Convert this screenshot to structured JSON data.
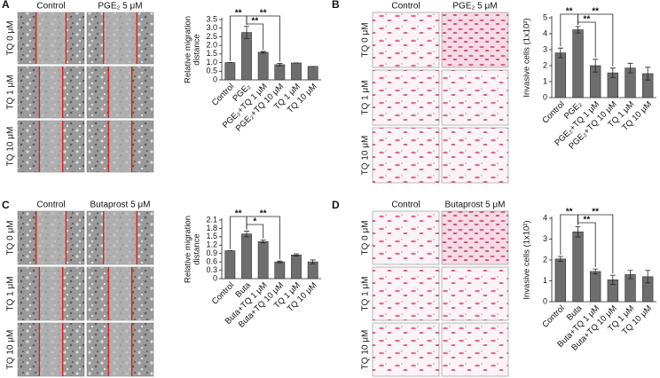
{
  "chart_data": [
    {
      "type": "bar",
      "panel_label": "A",
      "column_labels": [
        "Control",
        "PGE₂ 5 μM"
      ],
      "row_labels": [
        "TQ 0 μM",
        "TQ 1 μM",
        "TQ 10 μM"
      ],
      "ylabel": [
        "Relative migration",
        "distance"
      ],
      "categories": [
        "Control",
        "PGE₂",
        "PGE₂+TQ 1 μM",
        "PGE₂+TQ 10 μM",
        "TQ 1 μM",
        "TQ 10 μM"
      ],
      "values": [
        1.0,
        2.75,
        1.6,
        0.88,
        0.98,
        0.78
      ],
      "errors": [
        0,
        0.35,
        0.05,
        0.07,
        0,
        0
      ],
      "color": "#6e6e6e",
      "ylim": [
        0,
        3.5
      ],
      "yticks": [
        0,
        0.5,
        {
          "value": 1,
          "label": "1.0"
        },
        1.5,
        {
          "value": 2,
          "label": "2.0"
        },
        2.5,
        {
          "value": 3,
          "label": "3.0"
        },
        3.5
      ],
      "annotations": [
        {
          "text": "**",
          "between": [
            "Control",
            "PGE₂"
          ]
        },
        {
          "text": "**",
          "between": [
            "PGE₂",
            "PGE₂+TQ 1 μM"
          ]
        },
        {
          "text": "**",
          "between": [
            "PGE₂",
            "PGE₂+TQ 10 μM"
          ]
        }
      ]
    },
    {
      "type": "bar",
      "panel_label": "B",
      "column_labels": [
        "Control",
        "PGE₂ 5 μM"
      ],
      "row_labels": [
        "TQ 0 μM",
        "TQ 1 μM",
        "TQ 10 μM"
      ],
      "ylabel": [
        "Invasive cells (1x10²)"
      ],
      "categories": [
        "Control",
        "PGE₂",
        "PGE₂+TQ 1 μM",
        "PGE₂+TQ 10 μM",
        "TQ 1 μM",
        "TQ 10 μM"
      ],
      "values": [
        2.8,
        4.25,
        2.0,
        1.55,
        1.85,
        1.5
      ],
      "errors": [
        0.3,
        0.2,
        0.4,
        0.3,
        0.3,
        0.4
      ],
      "color": "#6e6e6e",
      "ylim": [
        0,
        5
      ],
      "yticks": [
        0,
        1,
        2,
        3,
        4,
        5
      ],
      "annotations": [
        {
          "text": "**",
          "between": [
            "Control",
            "PGE₂"
          ]
        },
        {
          "text": "**",
          "between": [
            "PGE₂",
            "PGE₂+TQ 1 μM"
          ]
        },
        {
          "text": "**",
          "between": [
            "PGE₂",
            "PGE₂+TQ 10 μM"
          ]
        }
      ]
    },
    {
      "type": "bar",
      "panel_label": "C",
      "column_labels": [
        "Control",
        "Butaprost 5 μM"
      ],
      "row_labels": [
        "TQ 0 μM",
        "TQ 1 μM",
        "TQ 10 μM"
      ],
      "ylabel": [
        "Relative migration",
        "distance"
      ],
      "categories": [
        "Control",
        "Buta",
        "Buta+TQ 1 μM",
        "Buta+TQ 10 μM",
        "TQ 1 μM",
        "TQ 10 μM"
      ],
      "values": [
        1.0,
        1.6,
        1.33,
        0.6,
        0.85,
        0.6
      ],
      "errors": [
        0,
        0.1,
        0.05,
        0.03,
        0.04,
        0.07
      ],
      "color": "#6e6e6e",
      "ylim": [
        0,
        2.1
      ],
      "yticks": [
        0,
        0.3,
        0.6,
        0.9,
        1.2,
        1.5,
        1.8,
        2.1
      ],
      "annotations": [
        {
          "text": "**",
          "between": [
            "Control",
            "Buta"
          ]
        },
        {
          "text": "*",
          "between": [
            "Buta",
            "Buta+TQ 1 μM"
          ]
        },
        {
          "text": "**",
          "between": [
            "Buta",
            "Buta+TQ 10 μM"
          ]
        }
      ]
    },
    {
      "type": "bar",
      "panel_label": "D",
      "column_labels": [
        "Control",
        "Butaprost 5 μM"
      ],
      "row_labels": [
        "TQ 0 μM",
        "TQ 1 μM",
        "TQ 10 μM"
      ],
      "ylabel": [
        "Invasive cells (1x10²)"
      ],
      "categories": [
        "Control",
        "Buta",
        "Buta+TQ 1 μM",
        "Buta+TQ 10 μM",
        "TQ 1 μM",
        "TQ 10 μM"
      ],
      "values": [
        2.05,
        3.35,
        1.45,
        1.05,
        1.3,
        1.2
      ],
      "errors": [
        0.12,
        0.25,
        0.12,
        0.22,
        0.2,
        0.3
      ],
      "color": "#6e6e6e",
      "ylim": [
        0,
        4
      ],
      "yticks": [
        0,
        1,
        2,
        3,
        4
      ],
      "annotations": [
        {
          "text": "**",
          "between": [
            "Control",
            "Buta"
          ]
        },
        {
          "text": "**",
          "between": [
            "Buta",
            "Buta+TQ 1 μM"
          ]
        },
        {
          "text": "**",
          "between": [
            "Buta",
            "Buta+TQ 10 μM"
          ]
        }
      ]
    }
  ]
}
